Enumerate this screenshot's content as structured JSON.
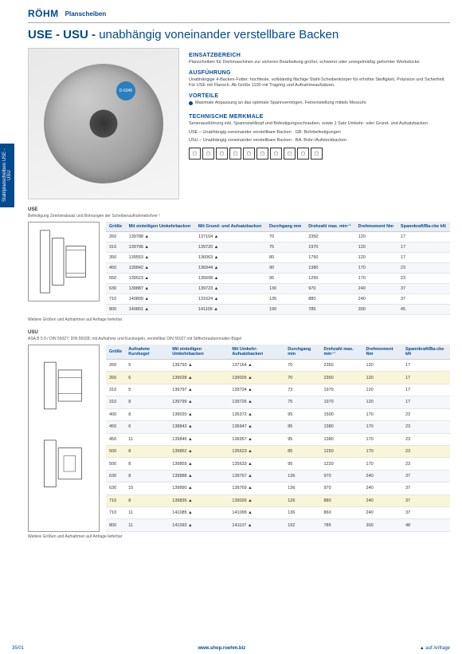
{
  "brand": "RÖHM",
  "header_title": "Planscheiben",
  "main_title_strong": "USE - USU - ",
  "main_title_rest": "unabhängig voneinander verstellbare Backen",
  "chuck_label": "D-6345",
  "sidebar_label": "Stahlplanscheiben\nUSE - USU",
  "sections": {
    "einsatz": {
      "h": "EINSATZBEREICH",
      "p": "Planscheiben für Drehmaschinen zur sicheren Bearbeitung großer, schwerer oder unregelmäßig geformter Werkstücke."
    },
    "ausf": {
      "h": "AUSFÜHRUNG",
      "p": "Unabhängige 4-Backen-Futter: hochfeste, vollständig flächige Stahl-Scheibenkörper für erhöhte Steifigkeit, Präzision und Sicherheit. Für USE mit Flansch. Ab Größe 1100 mit Tragring und Aufnahmeaufsätzen."
    },
    "vort": {
      "h": "VORTEILE",
      "b1": "Maximale Anpassung an das optimale Spannvermögen. Feineinstellung mittels Messuhr."
    },
    "tech": {
      "h": "TECHNISCHE MERKMALE",
      "b1": "Serienausführung inkl. Spannstahlkopf und Befestigungsschrauben, sowie 1 Satz Umkehr- oder Grund- und Aufsatzbacken"
    },
    "legend_use": "USE – Unabhängig voneinander verstellbare Backen · GB: Bohrbefestigungen",
    "legend_usu": "USU – Unabhängig voneinander verstellbare Backen · BA: Bohr-/Aufsteckbacken"
  },
  "icons_count": 10,
  "table1": {
    "title": "USE",
    "subtitle": "Befestigung Zentrierabsatz und Bohrungen der Scheibenaufnahmebohrer !",
    "columns": [
      "Größe",
      "Mit einteiligen Umkehrbacken",
      "Mit Grund- und Aufsatzbacken",
      "Durchgang mm",
      "Drehzahl max. min⁻¹",
      "Drehmoment Nm",
      "Spannkraft/Ba-cke kN"
    ],
    "rows": [
      [
        "260",
        "139788 ▲",
        "137104 ▲",
        "70",
        "2350",
        "120",
        "17"
      ],
      [
        "310",
        "139796 ▲",
        "139720 ▲",
        "75",
        "1970",
        "120",
        "17"
      ],
      [
        "350",
        "139553 ▲",
        "136063 ▲",
        "80",
        "1750",
        "120",
        "17"
      ],
      [
        "450",
        "139842 ▲",
        "136944 ▲",
        "90",
        "1380",
        "170",
        "23"
      ],
      [
        "550",
        "139523 ▲",
        "135608 ▲",
        "95",
        "1250",
        "170",
        "23"
      ],
      [
        "630",
        "139887 ▲",
        "139723 ▲",
        "130",
        "970",
        "240",
        "37"
      ],
      [
        "710",
        "140809 ▲",
        "131624 ▲",
        "135",
        "880",
        "240",
        "37"
      ],
      [
        "800",
        "140801 ▲",
        "141106 ▲",
        "190",
        "785",
        "300",
        "45"
      ]
    ],
    "note": "Weitere Größen und Aufnahmen auf Anfrage lieferbar"
  },
  "table2": {
    "title": "USU",
    "subtitle": "ASA B 5.9 / DIN 55027; DIN 55028; mit Aufnahme und Kurzkegeln, verstellbar DIN 55027 mit Stiftschraubenmutter-Bügel",
    "columns": [
      "Größe",
      "Aufnahme Kurzkegel",
      "Mit einteiligen Umkehrbacken",
      "Mit Umkehr-Aufsatzbacken",
      "Durchgang mm",
      "Drehzahl max. min⁻¹",
      "Drehmoment Nm",
      "Spannkraft/Ba-cke kN"
    ],
    "rows": [
      {
        "cells": [
          "260",
          "5",
          "139793 ▲",
          "137164 ▲",
          "70",
          "2350",
          "120",
          "17"
        ],
        "hl": false
      },
      {
        "cells": [
          "260",
          "6",
          "139028 ▲",
          "139026 ▲",
          "70",
          "2350",
          "120",
          "17"
        ],
        "hl": true
      },
      {
        "cells": [
          "310",
          "5",
          "139797 ▲",
          "139724 ▲",
          "73",
          "1970",
          "120",
          "17"
        ],
        "hl": false
      },
      {
        "cells": [
          "310",
          "8",
          "139799 ▲",
          "139726 ▲",
          "75",
          "1970",
          "120",
          "17"
        ],
        "hl": false
      },
      {
        "cells": [
          "400",
          "8",
          "139020 ▲",
          "135372 ▲",
          "95",
          "1500",
          "170",
          "23"
        ],
        "hl": false
      },
      {
        "cells": [
          "450",
          "6",
          "138843 ▲",
          "136947 ▲",
          "85",
          "1380",
          "170",
          "23"
        ],
        "hl": false
      },
      {
        "cells": [
          "450",
          "11",
          "139845 ▲",
          "136957 ▲",
          "95",
          "1380",
          "170",
          "23"
        ],
        "hl": false
      },
      {
        "cells": [
          "500",
          "8",
          "139852 ▲",
          "135623 ▲",
          "85",
          "1250",
          "170",
          "23"
        ],
        "hl": true
      },
      {
        "cells": [
          "500",
          "8",
          "139859 ▲",
          "135633 ▲",
          "95",
          "1220",
          "170",
          "23"
        ],
        "hl": false
      },
      {
        "cells": [
          "630",
          "8",
          "139888 ▲",
          "139767 ▲",
          "136",
          "970",
          "240",
          "37"
        ],
        "hl": false
      },
      {
        "cells": [
          "630",
          "15",
          "139890 ▲",
          "139769 ▲",
          "136",
          "970",
          "240",
          "37"
        ],
        "hl": false
      },
      {
        "cells": [
          "710",
          "8",
          "139835 ▲",
          "139026 ▲",
          "126",
          "880",
          "240",
          "37"
        ],
        "hl": true
      },
      {
        "cells": [
          "710",
          "11",
          "141085 ▲",
          "141099 ▲",
          "136",
          "860",
          "240",
          "37"
        ],
        "hl": false
      },
      {
        "cells": [
          "800",
          "11",
          "141093 ▲",
          "141107 ▲",
          "192",
          "785",
          "300",
          "48"
        ],
        "hl": false
      }
    ],
    "note": "Weitere Größen und Aufnahmen auf Anfrage lieferbar"
  },
  "footer": {
    "left": "35/01",
    "center": "www.shop.roehm.biz",
    "right": "▲ auf Anfrage"
  },
  "colors": {
    "brand": "#004a8f",
    "row_alt": "#f5f7fa",
    "row_hl": "#f9f5d8",
    "th_bg": "#e8eef5"
  }
}
